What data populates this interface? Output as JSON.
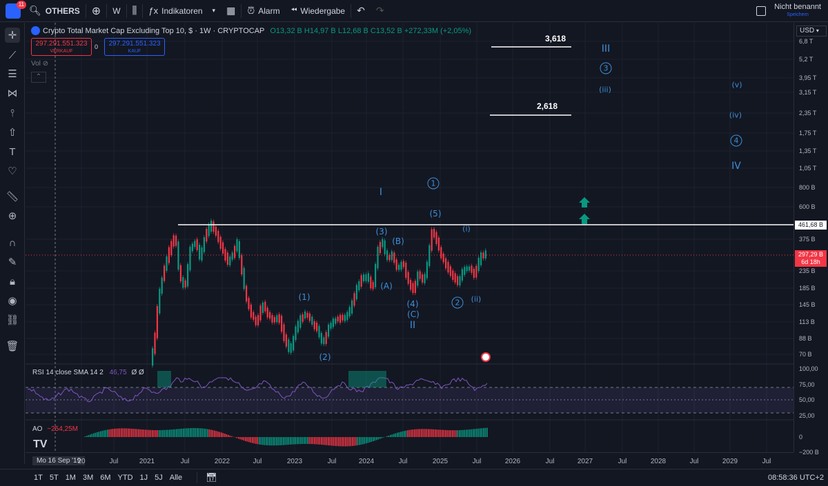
{
  "topbar": {
    "notification_count": "11",
    "symbol": "OTHERS",
    "interval": "W",
    "indicators_label": "Indikatoren",
    "alarm_label": "Alarm",
    "replay_label": "Wiedergabe",
    "layout_name": "Nicht benannt",
    "save_label": "Speichern"
  },
  "legend": {
    "title": "Crypto Total Market Cap Excluding Top 10, $ · 1W · CRYPTOCAP",
    "ohlc": "O13,32 B  H14,97 B  L12,68 B  C13,52 B  +272,33M (+2,05%)",
    "sell_price": "297.291.551.323",
    "sell_label": "VERKAUF",
    "spread": "0",
    "buy_price": "297.291.551.323",
    "buy_label": "KAUF",
    "vol_label": "Vol"
  },
  "annotations": {
    "fib_upper": "3,618",
    "fib_lower": "2,618",
    "resistance_value": "461,68 B",
    "current_price": "297,29 B",
    "countdown": "6d 18h"
  },
  "waves": {
    "I": "I",
    "II": "II",
    "III": "III",
    "IV": "IV",
    "c1": "1",
    "c2": "2",
    "c3": "3",
    "c4": "4",
    "p1": "(1)",
    "p2": "(2)",
    "p3": "(3)",
    "p4": "(4)",
    "p5": "(5)",
    "A": "(A)",
    "B": "(B)",
    "C": "(C)",
    "i": "(i)",
    "ii": "(ii)",
    "iii": "(iii)",
    "iv": "(iv)",
    "v": "(v)"
  },
  "price_axis": {
    "currency": "USD",
    "labels": [
      "6,8 T",
      "5,2 T",
      "3,95 T",
      "3,15 T",
      "2,35 T",
      "1,75 T",
      "1,35 T",
      "1,05 T",
      "800 B",
      "600 B",
      "375 B",
      "235 B",
      "185 B",
      "145 B",
      "113 B",
      "88 B",
      "70 B"
    ]
  },
  "rsi": {
    "label": "RSI 14 close SMA 14 2",
    "value": "46,75",
    "extra": "Ø Ø",
    "axis": [
      "100,00",
      "75,00",
      "50,00",
      "25,00"
    ]
  },
  "ao": {
    "label": "AO",
    "value": "−254,25M",
    "axis": [
      "0",
      "−200 B"
    ]
  },
  "time_axis": {
    "cursor_date": "Mo 16 Sep '19",
    "labels": [
      "20",
      "Jul",
      "2021",
      "Jul",
      "2022",
      "Jul",
      "2023",
      "Jul",
      "2024",
      "Jul",
      "2025",
      "Jul",
      "2026",
      "Jul",
      "2027",
      "Jul",
      "2028",
      "Jul",
      "2029",
      "Jul"
    ]
  },
  "bottombar": {
    "timeframes": [
      "1T",
      "5T",
      "1M",
      "3M",
      "6M",
      "YTD",
      "1J",
      "5J",
      "Alle"
    ],
    "clock": "08:58:36 UTC+2"
  },
  "colors": {
    "background": "#131722",
    "up": "#089981",
    "down": "#f23645",
    "wave": "#3d8fd9",
    "rsi": "#7e57c2"
  }
}
